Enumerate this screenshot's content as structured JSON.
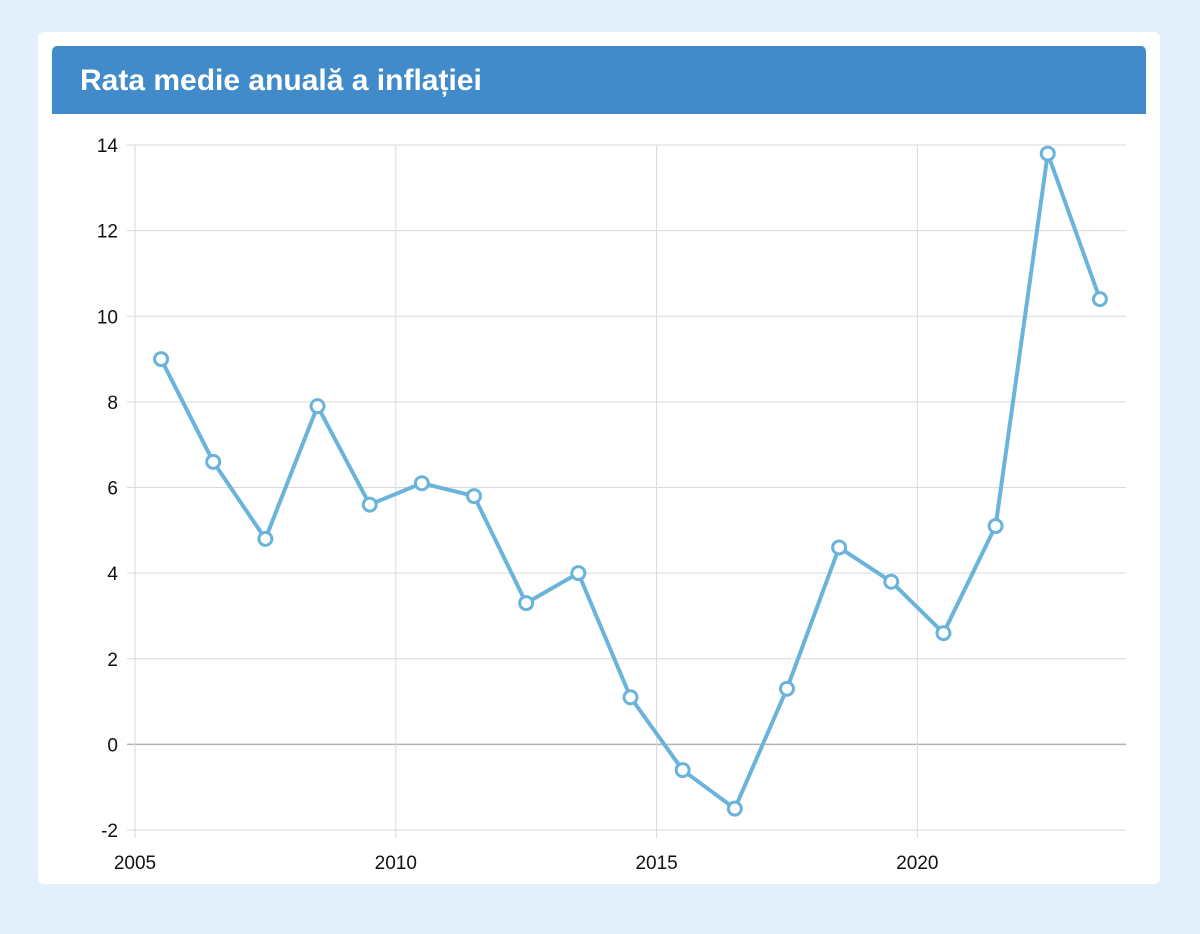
{
  "panel": {
    "title": "Rata medie anuală a inflației"
  },
  "chart_data": {
    "type": "line",
    "title": "",
    "xlabel": "",
    "ylabel": "",
    "xlim": [
      2005,
      2024
    ],
    "ylim": [
      -2,
      14
    ],
    "x_ticks": [
      2005,
      2010,
      2015,
      2020
    ],
    "y_ticks": [
      -2,
      0,
      2,
      4,
      6,
      8,
      10,
      12,
      14
    ],
    "grid": true,
    "series": [
      {
        "x": [
          2005.5,
          2006.5,
          2007.5,
          2008.5,
          2009.5,
          2010.5,
          2011.5,
          2012.5,
          2013.5,
          2014.5,
          2015.5,
          2016.5,
          2017.5,
          2018.5,
          2019.5,
          2020.5,
          2021.5,
          2022.5,
          2023.5
        ],
        "values": [
          9.0,
          6.6,
          4.8,
          7.9,
          5.6,
          6.1,
          5.8,
          3.3,
          4.0,
          1.1,
          -0.6,
          -1.5,
          1.3,
          4.6,
          3.8,
          2.6,
          5.1,
          13.8,
          10.4
        ]
      }
    ],
    "colors": {
      "line": "#6ab4dc",
      "marker_fill": "#ffffff",
      "grid": "#d9d9d9",
      "zero_line": "#b3b3b3"
    }
  }
}
